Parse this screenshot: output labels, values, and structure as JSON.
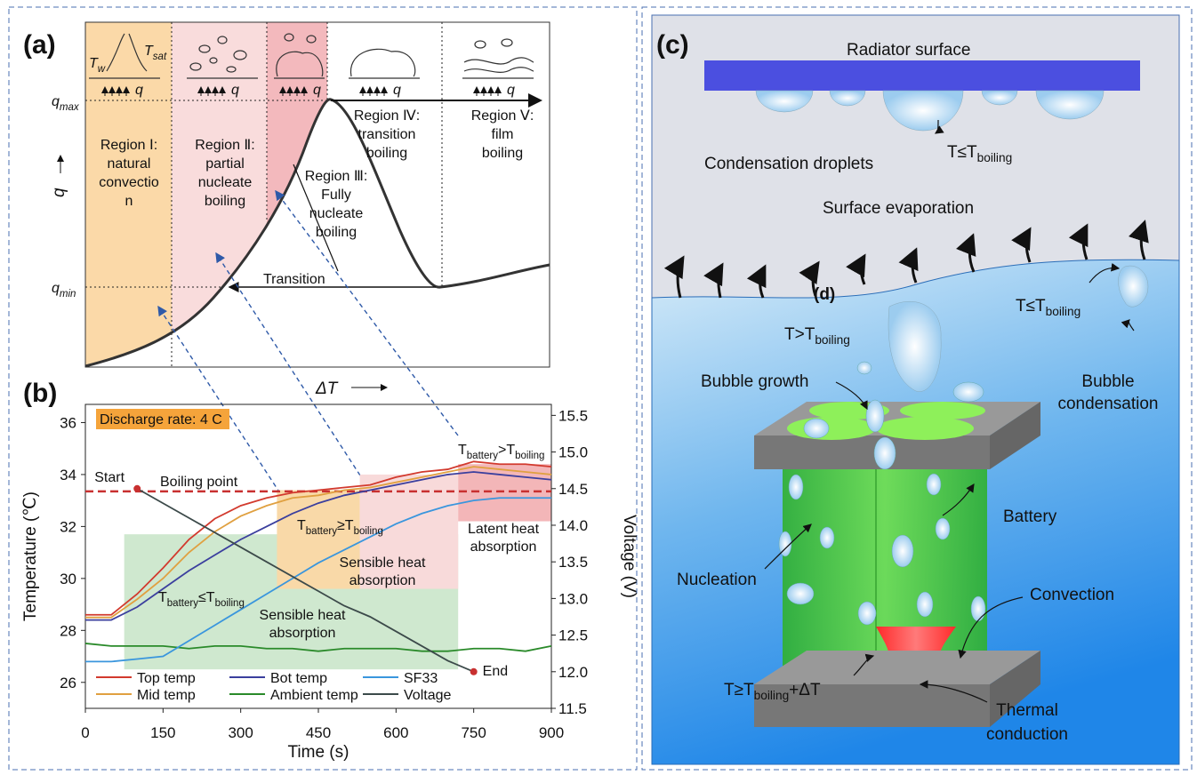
{
  "panel_a": {
    "label": "(a)",
    "q_max": [
      "q",
      "max"
    ],
    "q_min": [
      "q",
      "min"
    ],
    "y_axis": "q",
    "x_axis": "ΔT",
    "heat_flux": "q",
    "t_wall": [
      "T",
      "w"
    ],
    "t_sat": [
      "T",
      "sat"
    ],
    "transition": "Transition",
    "regions": [
      [
        "Region Ⅰ:",
        "natural",
        "convectio",
        "n"
      ],
      [
        "Region Ⅱ:",
        "partial",
        "nucleate",
        "boiling"
      ],
      [
        "Region Ⅲ:",
        "Fully",
        "nucleate",
        "boiling"
      ],
      [
        "Region Ⅳ:",
        "transition",
        "boiling"
      ],
      [
        "Region Ⅴ:",
        "film",
        "boiling"
      ]
    ]
  },
  "chart_data": {
    "type": "line",
    "label": "(b)",
    "xlabel": "Time (s)",
    "ylabel": "Temperature (℃)",
    "y2label": "Voltage (V)",
    "x": [
      0,
      50,
      100,
      150,
      200,
      250,
      300,
      350,
      400,
      450,
      500,
      550,
      600,
      650,
      700,
      750,
      800,
      850,
      900
    ],
    "xlim": [
      0,
      900
    ],
    "xticks": [
      0,
      150,
      300,
      450,
      600,
      750,
      900
    ],
    "ylim": [
      25,
      36.7
    ],
    "yticks": [
      26,
      28,
      30,
      32,
      34,
      36
    ],
    "y2lim": [
      11.5,
      15.65
    ],
    "y2ticks": [
      11.5,
      {
        "value": 12,
        "label": "12.0"
      },
      12.5,
      {
        "value": 13,
        "label": "13.0"
      },
      13.5,
      {
        "value": 14,
        "label": "14.0"
      },
      14.5,
      {
        "value": 15,
        "label": "15.0"
      },
      15.5
    ],
    "legend": "lower left",
    "series": [
      {
        "name": "Top temp",
        "color": "#d23a2e",
        "values": [
          28.6,
          28.6,
          29.4,
          30.4,
          31.5,
          32.3,
          32.8,
          33.1,
          33.3,
          33.4,
          33.5,
          33.6,
          33.9,
          34.1,
          34.2,
          34.5,
          34.4,
          34.4,
          34.3
        ]
      },
      {
        "name": "Mid temp",
        "color": "#e0a040",
        "values": [
          28.5,
          28.5,
          29.2,
          30.0,
          31.0,
          31.8,
          32.4,
          32.8,
          33.1,
          33.2,
          33.4,
          33.5,
          33.7,
          33.9,
          34.1,
          34.3,
          34.2,
          34.1,
          34.0
        ]
      },
      {
        "name": "Bot temp",
        "color": "#3b3f9e",
        "values": [
          28.4,
          28.4,
          28.9,
          29.6,
          30.3,
          30.9,
          31.5,
          32.0,
          32.5,
          32.9,
          33.2,
          33.4,
          33.6,
          33.8,
          34.0,
          34.1,
          34.0,
          33.9,
          33.8
        ]
      },
      {
        "name": "Ambient temp",
        "color": "#2a8a2a",
        "values": [
          27.5,
          27.4,
          27.4,
          27.4,
          27.3,
          27.4,
          27.4,
          27.3,
          27.3,
          27.2,
          27.3,
          27.3,
          27.3,
          27.2,
          27.2,
          27.3,
          27.3,
          27.2,
          27.4
        ]
      },
      {
        "name": "SF33",
        "color": "#3a96dd",
        "values": [
          26.8,
          26.8,
          26.9,
          27.0,
          27.6,
          28.2,
          28.8,
          29.4,
          30.0,
          30.6,
          31.1,
          31.6,
          32.1,
          32.5,
          32.8,
          33.0,
          33.1,
          33.1,
          33.1
        ]
      },
      {
        "name": "Voltage",
        "color": "#3c4a4a",
        "axis": "y2",
        "values": [
          null,
          null,
          14.5,
          14.3,
          14.1,
          13.9,
          13.7,
          13.5,
          13.3,
          13.1,
          12.9,
          12.75,
          12.55,
          12.35,
          12.15,
          12.0,
          null,
          null,
          null
        ]
      }
    ],
    "boiling_point": {
      "value": 33.35,
      "label": "Boiling point"
    },
    "discharge": "Discharge rate: 4 C",
    "start": "Start",
    "end": "End",
    "zones": [
      {
        "x": [
          75,
          720
        ],
        "y": [
          26.5,
          31.7
        ],
        "color": "#cfe8cf"
      },
      {
        "x": [
          370,
          530
        ],
        "y": [
          29.6,
          33.4
        ],
        "color": "#f9d9a8"
      },
      {
        "x": [
          530,
          720
        ],
        "y": [
          29.6,
          34.0
        ],
        "color": "#f8dada"
      },
      {
        "x": [
          720,
          900
        ],
        "y": [
          32.2,
          34.4
        ],
        "color": "#f3b6b8"
      }
    ],
    "notes": {
      "t1": [
        "T",
        "battery",
        "≤T",
        "boiling"
      ],
      "t2": [
        "T",
        "battery",
        "≥T",
        "boiling"
      ],
      "t3": [
        "T",
        "battery",
        ">T",
        "boiling"
      ],
      "sensible1": [
        "Sensible heat",
        "absorption"
      ],
      "sensible2": [
        "Sensible heat",
        "absorption"
      ],
      "latent": [
        "Latent heat",
        "absorption"
      ]
    }
  },
  "panel_c": {
    "label": "(c)",
    "radiator": "Radiator surface",
    "droplets": "Condensation droplets",
    "t_cond": [
      "T≤T",
      "boiling"
    ],
    "evaporation": "Surface evaporation",
    "d": "(d)",
    "t_hot": [
      "T>T",
      "boiling"
    ],
    "t_cold": [
      "T≤T",
      "boiling"
    ],
    "growth": "Bubble growth",
    "condensation": [
      "Bubble",
      "condensation"
    ],
    "battery": "Battery",
    "nucleation": "Nucleation",
    "convection": "Convection",
    "t_conv": [
      "T≥T",
      "boiling",
      "+ΔT"
    ],
    "conduction": [
      "Thermal",
      "conduction"
    ]
  }
}
